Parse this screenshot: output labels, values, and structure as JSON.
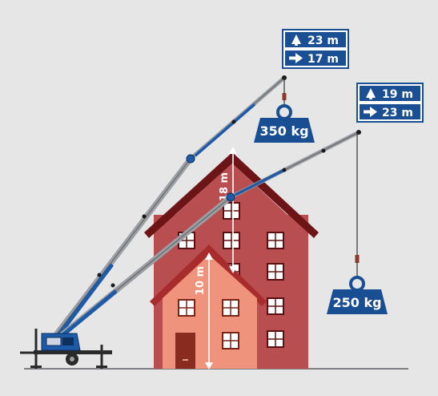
{
  "colors": {
    "background": "#e6e6e7",
    "label_blue": "#1b4f93",
    "boom_blue": "#1d5aa8",
    "boom_gray": "#9b9ea2",
    "weight_blue": "#1a4e92",
    "tall_house_wall": "#b84e50",
    "tall_house_roof": "#6d1416",
    "small_house_wall": "#ef937c",
    "small_house_roof": "#a92c2c",
    "door": "#8a2b1f"
  },
  "labels": {
    "upper_height": "23 m",
    "upper_reach": "17 m",
    "lower_height": "19 m",
    "lower_reach": "23 m"
  },
  "weights": {
    "upper": "350 kg",
    "lower": "250 kg"
  },
  "dimensions": {
    "tall_house": "18 m",
    "small_house": "10 m"
  },
  "icons": {
    "height": "arrow-up-icon",
    "reach": "arrow-right-icon"
  }
}
